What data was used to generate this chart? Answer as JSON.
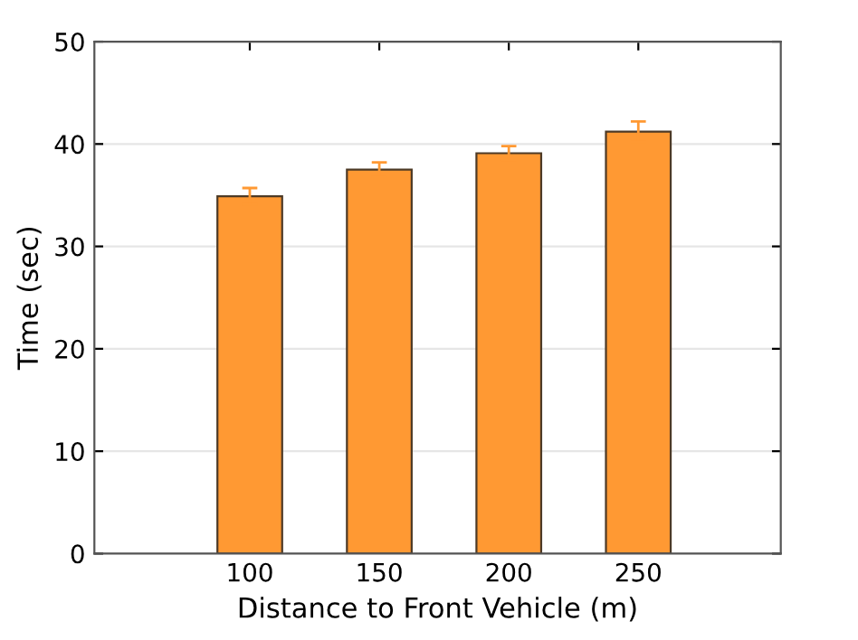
{
  "chart_data": {
    "type": "bar",
    "xlabel": "Distance to Front Vehicle (m)",
    "ylabel": "Time (sec)",
    "x": [
      100,
      150,
      200,
      250
    ],
    "values": [
      34.9,
      37.5,
      39.1,
      41.2
    ],
    "errors": [
      0.8,
      0.7,
      0.7,
      1.0
    ],
    "color": "#ff9933",
    "xlim": [
      40,
      305
    ],
    "xticks": [
      100,
      150,
      200,
      250
    ],
    "ylim": [
      0,
      50
    ],
    "yticks": [
      0,
      10,
      20,
      30,
      40,
      50
    ],
    "grid": "y"
  }
}
